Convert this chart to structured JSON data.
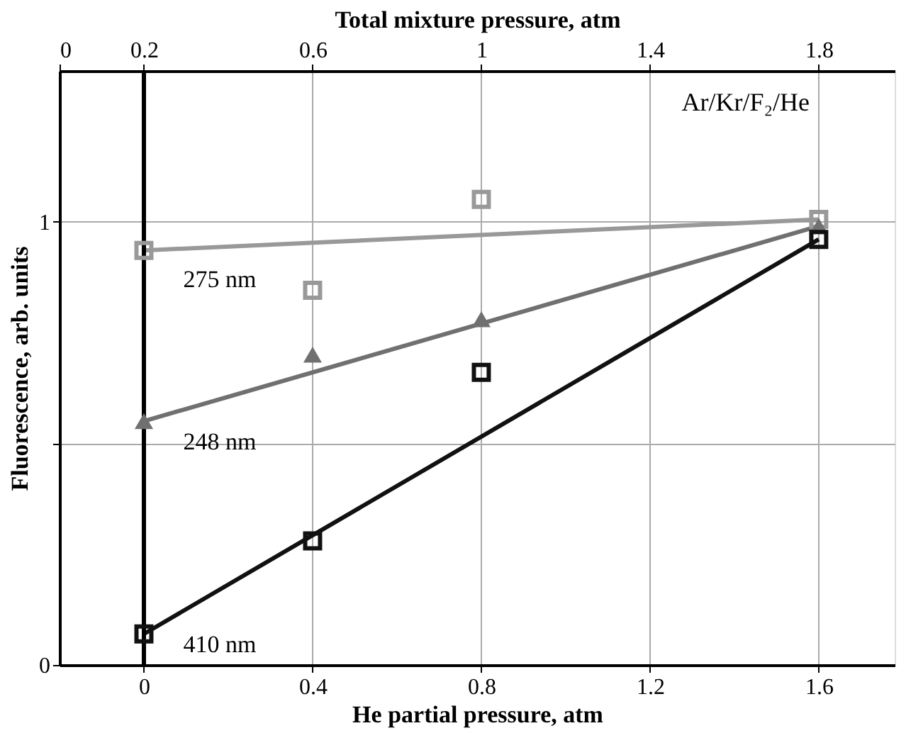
{
  "chart_data": {
    "type": "scatter",
    "xlabel": "He partial pressure, atm",
    "x2label": "Total mixture pressure, atm",
    "ylabel": "Fluorescence, arb. units",
    "annotations": [
      "Ar/Kr/F₂/He"
    ],
    "xlim": [
      -0.2,
      1.78
    ],
    "xticks": [
      0,
      0.4,
      0.8,
      1.2,
      1.6
    ],
    "x2lim": [
      0,
      1.98
    ],
    "x2ticks": [
      0,
      0.2,
      0.6,
      1,
      1.4,
      1.8
    ],
    "ylim": [
      0,
      1.34
    ],
    "yticks": [
      0,
      {
        "value": 0.5,
        "label": null
      },
      1
    ],
    "grid": true,
    "ref_lines": [
      {
        "axis": "x",
        "value": 0,
        "color": "#000000"
      }
    ],
    "series": [
      {
        "marker": "square",
        "color": "#999999",
        "x": [
          0,
          0.4,
          0.8,
          1.6
        ],
        "values": [
          0.935,
          0.845,
          1.05,
          1.005
        ]
      },
      {
        "type": "line",
        "name": "275 nm",
        "color": "#999999",
        "x": [
          0,
          1.6
        ],
        "values": [
          0.935,
          1.005
        ]
      },
      {
        "marker": "triangle",
        "color": "#707070",
        "x": [
          0,
          0.4,
          0.8,
          1.6
        ],
        "values": [
          0.55,
          0.7,
          0.78,
          0.99
        ]
      },
      {
        "type": "line",
        "name": "248 nm",
        "color": "#707070",
        "x": [
          0,
          1.6
        ],
        "values": [
          0.55,
          0.99
        ]
      },
      {
        "marker": "square",
        "color": "#111111",
        "x": [
          0,
          0.4,
          0.8,
          1.6
        ],
        "values": [
          0.07,
          0.28,
          0.66,
          0.96
        ]
      },
      {
        "type": "line",
        "name": "410 nm",
        "color": "#111111",
        "x": [
          0,
          1.6
        ],
        "values": [
          0.07,
          0.96
        ]
      }
    ]
  }
}
